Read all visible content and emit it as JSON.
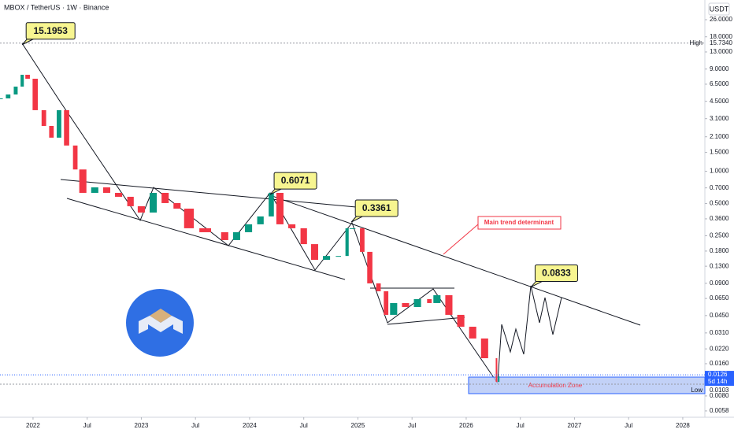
{
  "chart_data": {
    "type": "candlestick",
    "title": "MBOX / TetherUS · 1W · Binance",
    "currency": "USDT",
    "log_scale": true,
    "xlim": [
      2021.695,
      2028.204
    ],
    "ylim": [
      39.7,
      0.00506
    ],
    "xticks": [
      2022,
      {
        "value": 2022.5,
        "label": "Jul"
      },
      2023,
      {
        "value": 2023.5,
        "label": "Jul"
      },
      2024,
      {
        "value": 2024.5,
        "label": "Jul"
      },
      2025,
      {
        "value": 2025.5,
        "label": "Jul"
      },
      2026,
      {
        "value": 2026.5,
        "label": "Jul"
      },
      2027,
      {
        "value": 2027.5,
        "label": "Jul"
      },
      2028
    ],
    "yticks": [
      {
        "value": 26,
        "label": "26.0000"
      },
      {
        "value": 18,
        "label": "18.0000"
      },
      {
        "value": 13,
        "label": "13.0000"
      },
      {
        "value": 9,
        "label": "9.0000"
      },
      {
        "value": 6.5,
        "label": "6.5000"
      },
      {
        "value": 4.5,
        "label": "4.5000"
      },
      {
        "value": 3.1,
        "label": "3.1000"
      },
      {
        "value": 2.1,
        "label": "2.1000"
      },
      {
        "value": 1.5,
        "label": "1.5000"
      },
      {
        "value": 1,
        "label": "1.0000"
      },
      {
        "value": 0.7,
        "label": "0.7000"
      },
      {
        "value": 0.5,
        "label": "0.5000"
      },
      {
        "value": 0.36,
        "label": "0.3600"
      },
      {
        "value": 0.25,
        "label": "0.2500"
      },
      {
        "value": 0.18,
        "label": "0.1800"
      },
      {
        "value": 0.13,
        "label": "0.1300"
      },
      {
        "value": 0.09,
        "label": "0.0900"
      },
      {
        "value": 0.065,
        "label": "0.0650"
      },
      {
        "value": 0.045,
        "label": "0.0450"
      },
      {
        "value": 0.031,
        "label": "0.0310"
      },
      {
        "value": 0.022,
        "label": "0.0220"
      },
      {
        "value": 0.016,
        "label": "0.0160"
      },
      {
        "value": 0.008,
        "label": "0.0080"
      },
      {
        "value": 0.0058,
        "label": "0.0058"
      }
    ],
    "up_color": "#089981",
    "down_color": "#f23645",
    "x": [
      2021.7,
      2021.77,
      2021.84,
      2021.9,
      2021.95,
      2022.02,
      2022.1,
      2022.17,
      2022.24,
      2022.31,
      2022.39,
      2022.46,
      2022.57,
      2022.68,
      2022.79,
      2022.9,
      2023.0,
      2023.11,
      2023.22,
      2023.33,
      2023.44,
      2023.59,
      2023.77,
      2023.88,
      2023.99,
      2024.1,
      2024.2,
      2024.28,
      2024.39,
      2024.5,
      2024.6,
      2024.71,
      2024.82,
      2024.9,
      2024.95,
      2025.04,
      2025.11,
      2025.19,
      2025.26,
      2025.33,
      2025.44,
      2025.55,
      2025.66,
      2025.73,
      2025.84,
      2025.95,
      2026.06,
      2026.17,
      2026.28,
      2026.3
    ],
    "values": [
      4.79,
      5.21,
      6.17,
      7.96,
      7.31,
      3.72,
      2.65,
      2.06,
      3.72,
      1.74,
      1.04,
      0.629,
      0.708,
      0.629,
      0.578,
      0.472,
      0.412,
      0.629,
      0.505,
      0.448,
      0.294,
      0.27,
      0.228,
      0.27,
      0.32,
      0.379,
      0.629,
      0.32,
      0.294,
      0.209,
      0.149,
      0.162,
      0.162,
      0.294,
      0.294,
      0.177,
      0.0899,
      0.0759,
      0.0457,
      0.0589,
      0.0541,
      0.0641,
      0.0589,
      0.0697,
      0.0457,
      0.0354,
      0.0275,
      0.018,
      0.0108,
      0.0122
    ],
    "high": {
      "label": "High",
      "value": 15.734,
      "value_label": "15.7340"
    },
    "low": {
      "label": "Low",
      "value": 0.0103,
      "value_label": "0.0103"
    },
    "last": {
      "value": 0.0126,
      "value_label": "0.0126",
      "countdown": "5d 14h"
    },
    "annotations": [
      {
        "x": 2021.9,
        "value": 15.1953,
        "label": "15.1953"
      },
      {
        "x": 2024.19,
        "value": 0.6071,
        "label": "0.6071"
      },
      {
        "x": 2024.94,
        "value": 0.3361,
        "label": "0.3361"
      },
      {
        "x": 2026.6,
        "value": 0.0833,
        "label": "0.0833"
      }
    ],
    "notes": {
      "trend": "Main trend determinant",
      "zone": "Accumulation Zone"
    }
  }
}
